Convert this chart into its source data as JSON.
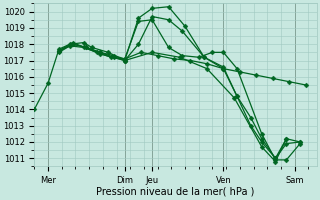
{
  "background_color": "#c8e8e0",
  "grid_color": "#a0c8c0",
  "line_color": "#006622",
  "title": "Pression niveau de la mer( hPa )",
  "ylim": [
    1010.5,
    1020.5
  ],
  "yticks": [
    1011,
    1012,
    1013,
    1014,
    1015,
    1016,
    1017,
    1018,
    1019,
    1020
  ],
  "xlim": [
    0,
    10.3
  ],
  "xtick_positions": [
    0.5,
    3.3,
    4.3,
    6.9,
    9.5
  ],
  "xtick_labels": [
    "Mer",
    "Dim",
    "Jeu",
    "Ven",
    "Sam"
  ],
  "vlines": [
    0.5,
    3.3,
    4.3,
    6.9,
    9.5
  ],
  "series": [
    [
      0.0,
      1014.0,
      0.5,
      1015.6,
      0.9,
      1017.7,
      1.3,
      1018.0,
      1.8,
      1018.1,
      2.1,
      1017.8,
      2.7,
      1017.5,
      3.3,
      1017.0,
      3.8,
      1019.6,
      4.3,
      1020.2,
      4.9,
      1020.3,
      5.5,
      1019.1,
      6.2,
      1017.2,
      6.9,
      1016.6,
      7.4,
      1014.8,
      7.9,
      1013.5,
      8.3,
      1012.2,
      8.8,
      1011.0,
      9.2,
      1011.9,
      9.7,
      1012.0
    ],
    [
      0.9,
      1017.6,
      1.3,
      1017.9,
      1.8,
      1017.8,
      2.3,
      1017.5,
      2.8,
      1017.2,
      3.3,
      1017.1,
      3.9,
      1017.5,
      4.5,
      1017.3,
      5.1,
      1017.1,
      5.7,
      1017.0,
      6.3,
      1016.8,
      6.9,
      1016.5,
      7.5,
      1016.3,
      8.1,
      1016.1,
      8.7,
      1015.9,
      9.3,
      1015.7,
      9.9,
      1015.5
    ],
    [
      0.9,
      1017.5,
      1.4,
      1018.0,
      1.9,
      1017.8,
      2.4,
      1017.5,
      2.9,
      1017.3,
      3.3,
      1017.1,
      3.8,
      1019.4,
      4.3,
      1019.5,
      4.9,
      1017.8,
      5.4,
      1017.3,
      6.0,
      1017.2,
      6.5,
      1017.5,
      6.9,
      1017.5,
      7.4,
      1016.5,
      8.3,
      1012.5,
      8.8,
      1010.9,
      9.2,
      1010.9,
      9.7,
      1011.9
    ],
    [
      0.9,
      1017.6,
      1.4,
      1018.0,
      1.9,
      1017.8,
      2.4,
      1017.5,
      2.9,
      1017.2,
      3.3,
      1017.0,
      3.8,
      1018.0,
      4.3,
      1019.7,
      4.9,
      1019.5,
      5.4,
      1018.8,
      6.2,
      1017.2,
      6.9,
      1016.5,
      7.4,
      1014.8,
      7.9,
      1013.0,
      8.3,
      1012.0,
      8.8,
      1011.0,
      9.2,
      1012.2,
      9.7,
      1012.0
    ],
    [
      0.9,
      1017.6,
      1.4,
      1018.1,
      2.4,
      1017.4,
      3.3,
      1017.0,
      4.3,
      1017.5,
      5.3,
      1017.2,
      6.3,
      1016.5,
      7.3,
      1014.7,
      8.3,
      1011.7,
      8.8,
      1010.8,
      9.2,
      1012.2
    ]
  ],
  "marker_size": 2.5,
  "line_width": 0.9,
  "title_fontsize": 7,
  "tick_fontsize": 6
}
